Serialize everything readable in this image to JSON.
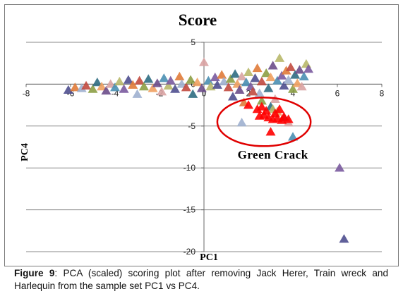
{
  "chart_data": {
    "type": "scatter",
    "title": "Score",
    "xlabel": "PC1",
    "ylabel": "PC4",
    "xlim": [
      -8,
      8
    ],
    "ylim": [
      -20,
      5
    ],
    "x_ticks": [
      -8,
      -6,
      -4,
      -2,
      0,
      2,
      4,
      6,
      8
    ],
    "y_ticks": [
      5,
      0,
      -5,
      -10,
      -15,
      -20
    ],
    "grid": "horizontal",
    "marker": "triangle",
    "annotation": {
      "text": "Green Crack",
      "ellipse_center": [
        2.7,
        -4.5
      ],
      "ellipse_radius": [
        2.1,
        2.9
      ]
    },
    "palette": [
      "#4f4f8f",
      "#e07b39",
      "#9fb0cf",
      "#c24a3f",
      "#8c9e45",
      "#2f6d82",
      "#f0a060",
      "#6b4c8a",
      "#d9a3a3",
      "#4a8fb3",
      "#b8b86a",
      "#7a5a9e"
    ],
    "highlight_color": "#ff0000",
    "series": [
      {
        "values": [
          [
            -6.1,
            -0.7
          ],
          [
            -5.8,
            -0.4
          ],
          [
            -5.5,
            -0.5
          ],
          [
            -5.3,
            -0.2
          ],
          [
            -5.0,
            -0.6
          ],
          [
            -4.8,
            0.2
          ],
          [
            -4.6,
            -0.3
          ],
          [
            -4.4,
            -0.8
          ],
          [
            -4.2,
            0.0
          ],
          [
            -4.0,
            -0.4
          ],
          [
            -3.8,
            0.3
          ],
          [
            -3.6,
            -0.6
          ],
          [
            -3.4,
            0.5
          ],
          [
            -3.2,
            -0.1
          ],
          [
            -3.0,
            -1.2
          ],
          [
            -2.9,
            0.4
          ],
          [
            -2.7,
            -0.3
          ],
          [
            -2.5,
            0.6
          ],
          [
            -2.3,
            -0.5
          ],
          [
            -2.1,
            0.1
          ],
          [
            -1.9,
            -0.9
          ],
          [
            -1.8,
            0.7
          ],
          [
            -1.6,
            -0.2
          ],
          [
            -1.5,
            0.4
          ],
          [
            -1.3,
            -0.6
          ],
          [
            -1.1,
            0.9
          ],
          [
            -1.0,
            0.0
          ],
          [
            -0.8,
            -0.4
          ],
          [
            -0.6,
            0.5
          ],
          [
            -0.5,
            -1.2
          ],
          [
            -0.3,
            0.2
          ],
          [
            -0.1,
            -0.5
          ],
          [
            0.0,
            2.6
          ],
          [
            0.2,
            0.4
          ],
          [
            0.3,
            -0.3
          ],
          [
            0.5,
            0.8
          ],
          [
            0.6,
            -0.1
          ],
          [
            0.8,
            1.1
          ],
          [
            0.9,
            0.3
          ],
          [
            1.1,
            -0.4
          ],
          [
            1.2,
            0.6
          ],
          [
            1.4,
            1.2
          ],
          [
            1.5,
            0.0
          ],
          [
            1.6,
            -0.7
          ],
          [
            1.7,
            0.9
          ],
          [
            1.9,
            0.2
          ],
          [
            2.0,
            1.4
          ],
          [
            2.1,
            -0.3
          ],
          [
            2.3,
            0.7
          ],
          [
            2.4,
            1.9
          ],
          [
            2.5,
            -1.1
          ],
          [
            2.6,
            0.3
          ],
          [
            2.8,
            1.3
          ],
          [
            2.9,
            -0.5
          ],
          [
            3.0,
            0.8
          ],
          [
            3.1,
            2.2
          ],
          [
            3.2,
            -1.8
          ],
          [
            3.3,
            0.4
          ],
          [
            3.4,
            3.1
          ],
          [
            3.5,
            1.0
          ],
          [
            3.6,
            -0.2
          ],
          [
            3.7,
            1.6
          ],
          [
            3.8,
            0.5
          ],
          [
            3.9,
            2.0
          ],
          [
            4.0,
            -0.6
          ],
          [
            4.1,
            1.1
          ],
          [
            4.2,
            0.1
          ],
          [
            4.3,
            1.7
          ],
          [
            4.4,
            -0.3
          ],
          [
            4.5,
            0.9
          ],
          [
            4.6,
            2.4
          ],
          [
            4.7,
            1.8
          ],
          [
            1.3,
            -1.5
          ],
          [
            1.8,
            -2.2
          ],
          [
            1.7,
            -4.6
          ],
          [
            2.2,
            -0.9
          ],
          [
            2.6,
            -2.0
          ],
          [
            3.0,
            -2.7
          ],
          [
            3.3,
            -3.3
          ],
          [
            3.6,
            -4.0
          ],
          [
            3.8,
            -4.6
          ],
          [
            4.0,
            -6.3
          ],
          [
            3.1,
            -3.0
          ],
          [
            6.1,
            -10.0
          ],
          [
            6.3,
            -18.5
          ]
        ]
      },
      {
        "name": "Green Crack",
        "values": [
          [
            2.0,
            -2.5
          ],
          [
            2.4,
            -3.0
          ],
          [
            2.6,
            -2.7
          ],
          [
            2.7,
            -3.7
          ],
          [
            2.8,
            -3.2
          ],
          [
            2.9,
            -4.0
          ],
          [
            3.0,
            -5.7
          ],
          [
            3.1,
            -4.2
          ],
          [
            3.2,
            -3.5
          ],
          [
            3.3,
            -4.1
          ],
          [
            3.4,
            -3.0
          ],
          [
            3.5,
            -4.3
          ],
          [
            3.6,
            -3.9
          ],
          [
            3.8,
            -4.2
          ],
          [
            2.5,
            -3.8
          ]
        ]
      }
    ]
  },
  "caption": {
    "label": "Figure 9",
    "text": ": PCA (scaled) scoring plot after removing Jack Herer, Train wreck and Harlequin from the sample set PC1 vs PC4."
  }
}
